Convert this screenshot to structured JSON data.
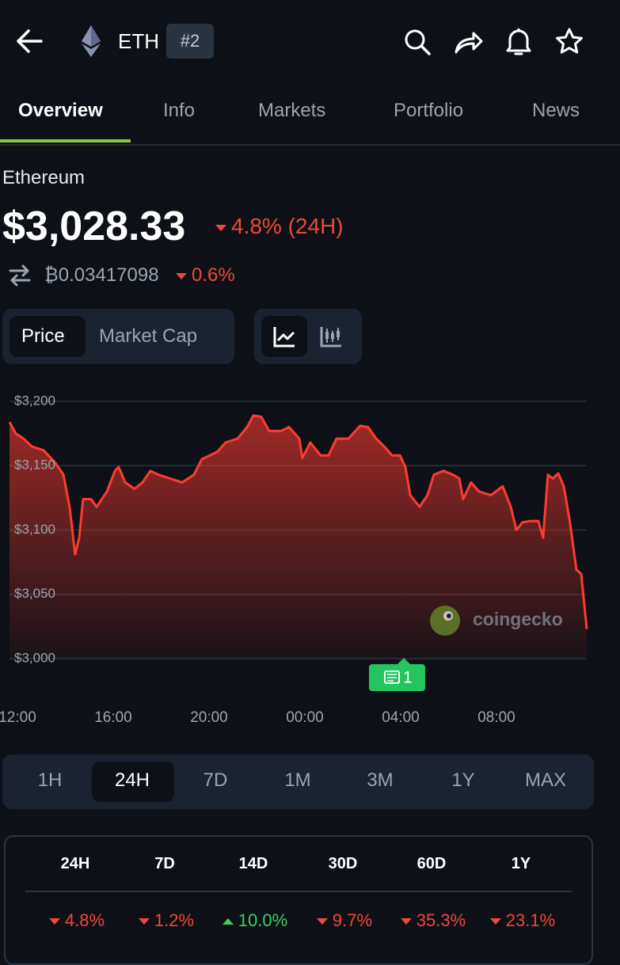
{
  "header": {
    "symbol": "ETH",
    "rank": "#2"
  },
  "tabs": [
    "Overview",
    "Info",
    "Markets",
    "Portfolio",
    "News"
  ],
  "coin": {
    "name": "Ethereum",
    "price": "$3,028.33",
    "change": "4.8% (24H)",
    "btc_price": "₿0.03417098",
    "btc_change": "0.6%"
  },
  "chart_toggle": [
    "Price",
    "Market Cap"
  ],
  "chart_data": {
    "type": "area",
    "color": "#ff3b30",
    "grid": true,
    "x": [
      -0.33,
      -0.07,
      0.26,
      0.6,
      1.09,
      1.59,
      1.92,
      2.18,
      2.41,
      2.58,
      2.74,
      3.07,
      3.31,
      3.74,
      4.07,
      4.23,
      4.5,
      4.89,
      5.22,
      5.55,
      5.88,
      6.38,
      6.88,
      7.37,
      7.7,
      8.03,
      8.36,
      8.69,
      9.19,
      9.59,
      9.85,
      10.18,
      10.51,
      11.01,
      11.34,
      11.77,
      11.9,
      12.23,
      12.66,
      12.99,
      13.32,
      13.82,
      14.31,
      14.64,
      14.98,
      15.31,
      15.64,
      15.97,
      16.2,
      16.4,
      16.79,
      17.12,
      17.39,
      17.79,
      18.18,
      18.45,
      18.61,
      18.94,
      19.27,
      19.77,
      20.26,
      20.6,
      20.83,
      21.09,
      21.42,
      21.75,
      21.95,
      22.15,
      22.35,
      22.58,
      22.81,
      23.07,
      23.34,
      23.54,
      23.77
    ],
    "values": [
      3184,
      3175,
      3171,
      3165,
      3162,
      3152,
      3143,
      3118,
      3081,
      3094,
      3124,
      3124,
      3118,
      3130,
      3146,
      3149,
      3137,
      3132,
      3137,
      3146,
      3143,
      3140,
      3137,
      3143,
      3155,
      3158,
      3161,
      3168,
      3171,
      3180,
      3189,
      3188,
      3177,
      3177,
      3180,
      3171,
      3156,
      3168,
      3158,
      3158,
      3171,
      3171,
      3181,
      3180,
      3171,
      3165,
      3158,
      3158,
      3149,
      3127,
      3118,
      3127,
      3143,
      3146,
      3143,
      3140,
      3124,
      3137,
      3130,
      3127,
      3134,
      3118,
      3100,
      3106,
      3107,
      3107,
      3094,
      3143,
      3140,
      3144,
      3134,
      3106,
      3069,
      3066,
      3023
    ],
    "xlim": [
      -0.33,
      23.77
    ],
    "xticks": [
      {
        "value": 0,
        "label": "12:00"
      },
      {
        "value": 4,
        "label": "16:00"
      },
      {
        "value": 8,
        "label": "20:00"
      },
      {
        "value": 12,
        "label": "00:00"
      },
      {
        "value": 16,
        "label": "04:00"
      },
      {
        "value": 20,
        "label": "08:00"
      }
    ],
    "ylim": [
      3000,
      3200
    ],
    "yticks": [
      {
        "value": 3000,
        "label": "$3,000"
      },
      {
        "value": 3050,
        "label": "$3,050"
      },
      {
        "value": 3100,
        "label": "$3,100"
      },
      {
        "value": 3150,
        "label": "$3,150"
      },
      {
        "value": 3200,
        "label": "$3,200"
      }
    ]
  },
  "watermark": "coingecko",
  "news_badge": "1",
  "ranges": [
    "1H",
    "24H",
    "7D",
    "1M",
    "3M",
    "1Y",
    "MAX"
  ],
  "performance": {
    "headers": [
      "24H",
      "7D",
      "14D",
      "30D",
      "60D",
      "1Y"
    ],
    "values": [
      "4.8%",
      "1.2%",
      "10.0%",
      "9.7%",
      "35.3%",
      "23.1%"
    ]
  }
}
